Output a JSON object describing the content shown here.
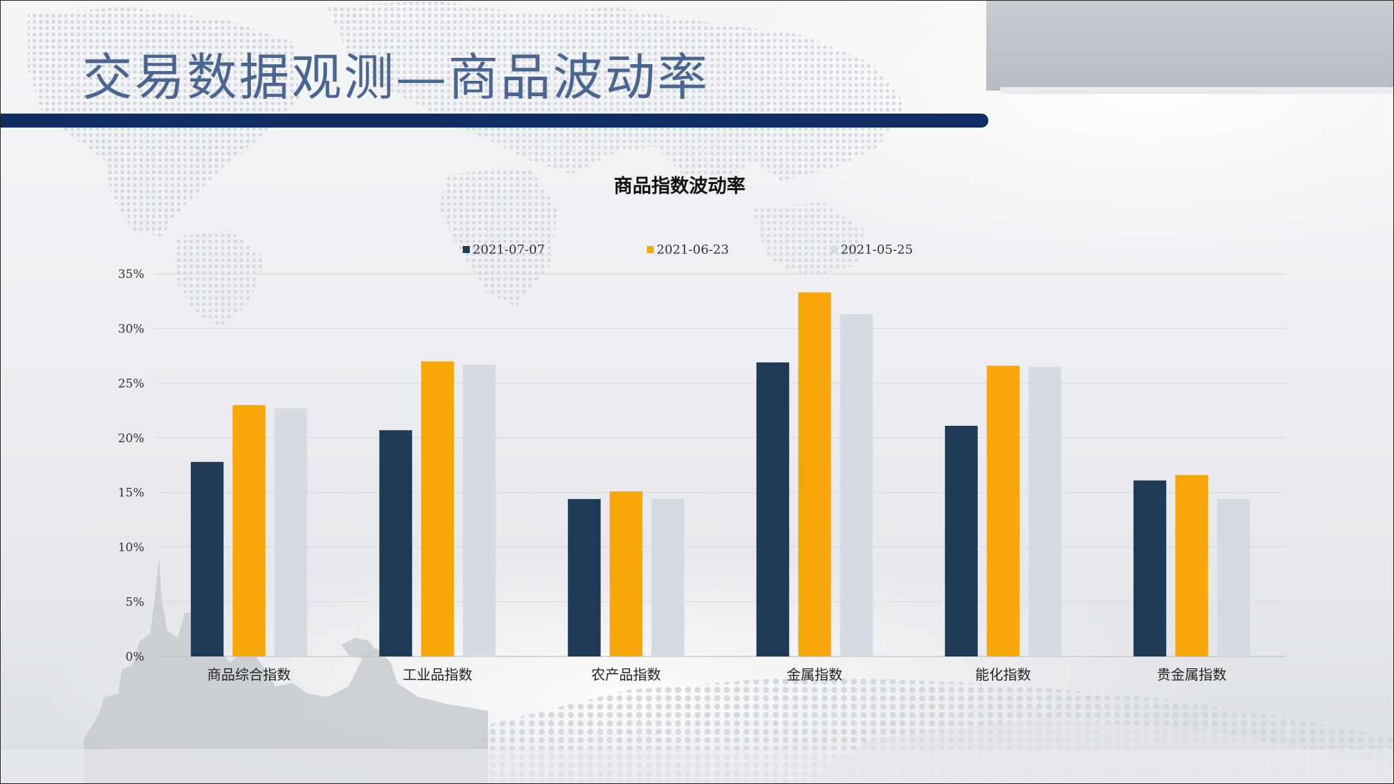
{
  "page": {
    "title": "交易数据观测—商品波动率"
  },
  "colors": {
    "title_bar": "#0f2d63",
    "title_text": "#4a6591",
    "series": [
      "#1f3a56",
      "#f9a608",
      "#d6dbe2"
    ]
  },
  "chart_data": {
    "type": "bar",
    "title": "商品指数波动率",
    "categories": [
      "商品综合指数",
      "工业品指数",
      "农产品指数",
      "金属指数",
      "能化指数",
      "贵金属指数"
    ],
    "series": [
      {
        "name": "2021-07-07",
        "values": [
          17.8,
          20.7,
          14.4,
          26.9,
          21.1,
          16.1
        ]
      },
      {
        "name": "2021-06-23",
        "values": [
          23.0,
          27.0,
          15.1,
          33.3,
          26.6,
          16.6
        ]
      },
      {
        "name": "2021-05-25",
        "values": [
          22.7,
          26.7,
          14.4,
          31.3,
          26.5,
          14.4
        ]
      }
    ],
    "ylim": [
      0,
      35
    ],
    "yticks": [
      "0%",
      "5%",
      "10%",
      "15%",
      "20%",
      "25%",
      "30%",
      "35%"
    ],
    "y_unit": "%",
    "grid": true,
    "legend_position": "top"
  }
}
